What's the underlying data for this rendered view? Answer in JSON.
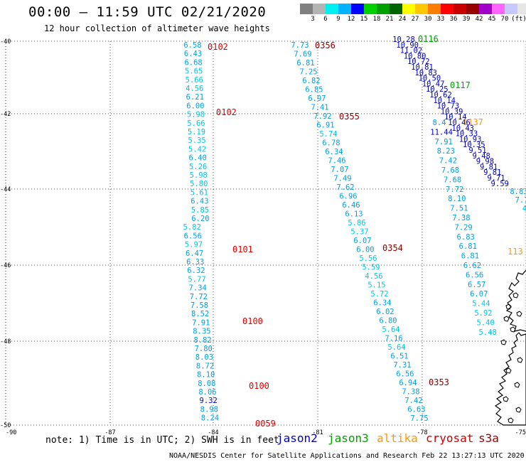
{
  "header": {
    "title": "00:00 – 11:59 UTC 02/21/2020",
    "subtitle": "12 hour collection of altimeter wave heights"
  },
  "colorbar": {
    "colors": [
      "#808080",
      "#b4b4b4",
      "#00f0f0",
      "#00b4ff",
      "#0000ff",
      "#00d200",
      "#00a000",
      "#006400",
      "#ffff00",
      "#ffc800",
      "#ff7d00",
      "#ff0000",
      "#c80000",
      "#960000",
      "#a000c8",
      "#ff64ff",
      "#c8c8ff",
      "#e6e6e6",
      "#000000"
    ],
    "labels": [
      "3",
      "6",
      "9",
      "12",
      "15",
      "18",
      "21",
      "24",
      "27",
      "30",
      "33",
      "36",
      "39",
      "42",
      "45",
      "70"
    ],
    "unit": "(ft)"
  },
  "map": {
    "lon_ticks": [
      "-90",
      "-87",
      "-84",
      "-81",
      "-78",
      "-75"
    ],
    "lat_ticks": [
      "-40",
      "-42",
      "-44",
      "-46",
      "-48",
      "-50"
    ],
    "tracks": [
      {
        "satellite": "cryosat",
        "time_labels": [
          "0102",
          "0102",
          "0101",
          "0100",
          "0100",
          "0059"
        ],
        "values": [
          "6.58",
          "6.43",
          "6.68",
          "5.65",
          "5.66",
          "4.56",
          "6.21",
          "6.00",
          "5.98",
          "5.66",
          "5.19",
          "5.35",
          "5.42",
          "6.40",
          "5.26",
          "5.98",
          "5.80",
          "5.61",
          "6.43",
          "5.85",
          "6.20",
          "5.82",
          "6.56",
          "5.97",
          "6.47",
          "6.33",
          "6.32",
          "5.77",
          "7.34",
          "7.72",
          "7.58",
          "8.52",
          "7.91",
          "8.35",
          "8.82",
          "7.80",
          "8.03",
          "8.72",
          "8.10",
          "8.08",
          "8.06",
          "9.32",
          "8.98",
          "8.24"
        ]
      },
      {
        "satellite": "cryosat",
        "time_labels": [
          "0356",
          "0355",
          "0354",
          "0353"
        ],
        "values": [
          "7.73",
          "7.69",
          "6.81",
          "7.25",
          "6.82",
          "6.85",
          "6.97",
          "7.41",
          "7.92",
          "6.91",
          "5.74",
          "6.78",
          "6.34",
          "7.46",
          "7.07",
          "7.49",
          "7.62",
          "6.96",
          "6.46",
          "6.13",
          "5.86",
          "5.37",
          "6.07",
          "6.00",
          "5.56",
          "5.59",
          "4.56",
          "5.15",
          "5.72",
          "6.34",
          "6.02",
          "6.80",
          "5.64",
          "7.16",
          "5.64",
          "6.51",
          "7.31",
          "6.56",
          "6.94",
          "7.38",
          "7.42",
          "6.63",
          "7.75"
        ]
      },
      {
        "satellite": "jason3",
        "time_labels": [
          "0116",
          "0117"
        ],
        "values": [
          "10.28",
          "10.90",
          "11.02",
          "10.80",
          "10.72",
          "10.81",
          "10.83",
          "10.50",
          "10.47",
          "10.25",
          "10.62",
          "10.14",
          "10.73",
          "10.39",
          "10.14",
          "10.46",
          "10.43",
          "10.33",
          "10.93",
          "10.35",
          "9.51",
          "9.48",
          "9.98",
          "9.81",
          "9.81",
          "9.71",
          "9.59"
        ]
      },
      {
        "satellite": "altika",
        "time_labels": [
          "1137",
          "113"
        ],
        "values": [
          "8.4",
          "11.44",
          "7.91",
          "8.23",
          "7.42",
          "7.68",
          "7.68",
          "7.72",
          "8.10",
          "7.51",
          "7.38",
          "7.29",
          "6.83",
          "6.81",
          "6.81",
          "6.62",
          "6.56",
          "6.57",
          "6.07",
          "5.44",
          "5.92",
          "5.40",
          "5.48",
          "8.83",
          "7.7",
          "4"
        ]
      }
    ]
  },
  "note": "note: 1) Time is in UTC; 2) SWH is in feet",
  "legend": [
    {
      "name": "jason2",
      "color": "#0000cc"
    },
    {
      "name": "jason3",
      "color": "#00a000"
    },
    {
      "name": "altika",
      "color": "#ff9900"
    },
    {
      "name": "cryosat",
      "color": "#cc0000"
    },
    {
      "name": "s3a",
      "color": "#990000"
    }
  ],
  "footer": "NOAA/NESDIS Center for Satellite Applications and Research   Feb 22 13:27:13 UTC 2020"
}
